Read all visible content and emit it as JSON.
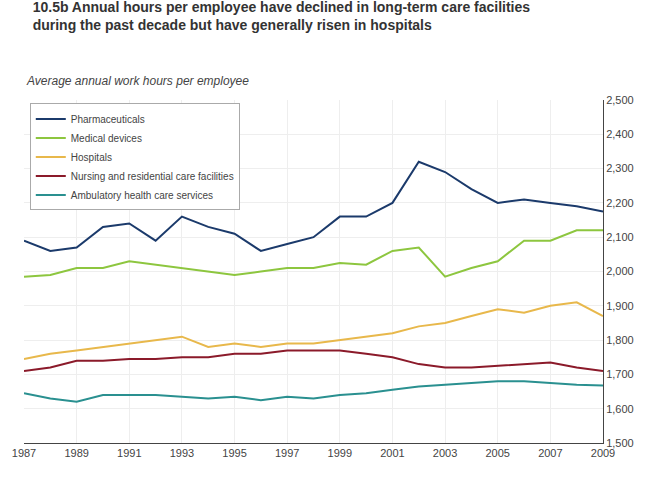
{
  "chart_data": {
    "type": "line",
    "title": "10.5b Annual hours per employee have declined in long-term care facilities\nduring the past decade but have generally risen in hospitals",
    "subtitle": "Average annual work hours per employee",
    "x": [
      1987,
      1988,
      1989,
      1990,
      1991,
      1992,
      1993,
      1994,
      1995,
      1996,
      1997,
      1998,
      1999,
      2000,
      2001,
      2002,
      2003,
      2004,
      2005,
      2006,
      2007,
      2008,
      2009
    ],
    "series": [
      {
        "name": "Pharmaceuticals",
        "color": "#1b3a6b",
        "values": [
          2090,
          2060,
          2070,
          2130,
          2140,
          2090,
          2160,
          2130,
          2110,
          2060,
          2080,
          2100,
          2160,
          2160,
          2200,
          2320,
          2290,
          2240,
          2200,
          2210,
          2200,
          2190,
          2175
        ]
      },
      {
        "name": "Medical devices",
        "color": "#8dc63f",
        "values": [
          1985,
          1990,
          2010,
          2010,
          2030,
          2020,
          2010,
          2000,
          1990,
          2000,
          2010,
          2010,
          2025,
          2020,
          2060,
          2070,
          1985,
          2010,
          2030,
          2090,
          2090,
          2120,
          2120
        ]
      },
      {
        "name": "Hospitals",
        "color": "#e8b84b",
        "values": [
          1745,
          1760,
          1770,
          1780,
          1790,
          1800,
          1810,
          1780,
          1790,
          1780,
          1790,
          1790,
          1800,
          1810,
          1820,
          1840,
          1850,
          1870,
          1890,
          1880,
          1900,
          1910,
          1870
        ]
      },
      {
        "name": "Nursing and residential care facilities",
        "color": "#8b1a2a",
        "values": [
          1710,
          1720,
          1740,
          1740,
          1745,
          1745,
          1750,
          1750,
          1760,
          1760,
          1770,
          1770,
          1770,
          1760,
          1750,
          1730,
          1720,
          1720,
          1725,
          1730,
          1735,
          1720,
          1710
        ]
      },
      {
        "name": "Ambulatory health care services",
        "color": "#2a9090",
        "values": [
          1645,
          1630,
          1620,
          1640,
          1640,
          1640,
          1635,
          1630,
          1635,
          1625,
          1635,
          1630,
          1640,
          1645,
          1655,
          1665,
          1670,
          1675,
          1680,
          1680,
          1675,
          1670,
          1668
        ]
      }
    ],
    "xlim": [
      1987,
      2009
    ],
    "xticks": [
      1987,
      1989,
      1991,
      1993,
      1995,
      1997,
      1999,
      2001,
      2003,
      2005,
      2007,
      2009
    ],
    "ylim": [
      1500,
      2500
    ],
    "yticks": [
      {
        "value": 1500,
        "label": "1,500"
      },
      {
        "value": 1600,
        "label": "1,600"
      },
      {
        "value": 1700,
        "label": "1,700"
      },
      {
        "value": 1800,
        "label": "1,800"
      },
      {
        "value": 1900,
        "label": "1,900"
      },
      {
        "value": 2000,
        "label": "2,000"
      },
      {
        "value": 2100,
        "label": "2,100"
      },
      {
        "value": 2200,
        "label": "2,200"
      },
      {
        "value": 2300,
        "label": "2,300"
      },
      {
        "value": 2400,
        "label": "2,400"
      },
      {
        "value": 2500,
        "label": "2,500"
      }
    ],
    "grid": true,
    "legend": "upper left"
  }
}
